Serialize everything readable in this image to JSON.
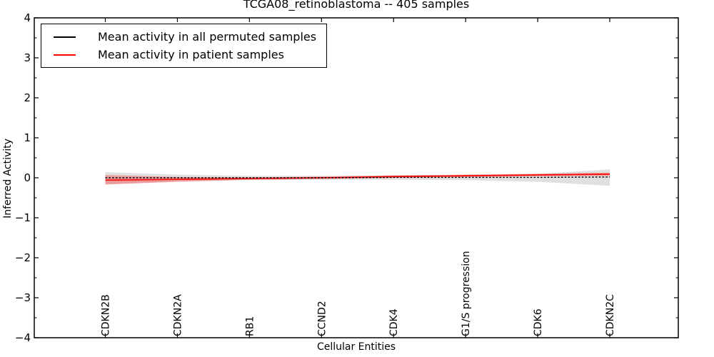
{
  "chart_data": {
    "type": "line",
    "title": "TCGA08_retinoblastoma -- 405 samples",
    "xlabel": "Cellular Entities",
    "ylabel": "Inferred Activity",
    "ylim": [
      -4,
      4
    ],
    "ytick_values": [
      4,
      3,
      2,
      1,
      0,
      -1,
      -2,
      -3,
      -4
    ],
    "ytick_labels": [
      "4",
      "3",
      "2",
      "1",
      "0",
      "−1",
      "−2",
      "−3",
      "−4"
    ],
    "minor_ytick_step": 0.5,
    "grid": false,
    "legend_position": "upper left",
    "categories": [
      "CDKN2B",
      "CDKN2A",
      "RB1",
      "CCND2",
      "CDK4",
      "G1/S progression",
      "CDK6",
      "CDKN2C"
    ],
    "series": [
      {
        "name": "Mean activity in all permuted samples",
        "color": "#000000",
        "style": "dashed",
        "values": [
          0.0,
          0.0,
          0.0,
          0.0,
          0.01,
          0.01,
          0.01,
          0.02
        ],
        "band_upper": [
          0.14,
          0.08,
          0.05,
          0.05,
          0.06,
          0.07,
          0.1,
          0.21
        ],
        "band_lower": [
          -0.16,
          -0.09,
          -0.06,
          -0.05,
          -0.05,
          -0.06,
          -0.1,
          -0.2
        ],
        "band_color": "#000000",
        "band_opacity": 0.12
      },
      {
        "name": "Mean activity in patient samples",
        "color": "#ff0000",
        "style": "solid",
        "values": [
          -0.06,
          -0.04,
          -0.02,
          0.0,
          0.03,
          0.05,
          0.07,
          0.09
        ],
        "band_upper": [
          0.07,
          0.02,
          0.01,
          0.03,
          0.06,
          0.08,
          0.1,
          0.13
        ],
        "band_lower": [
          -0.17,
          -0.1,
          -0.05,
          -0.03,
          0.0,
          0.02,
          0.04,
          0.05
        ],
        "band_color": "#ff0000",
        "band_opacity": 0.3
      }
    ]
  }
}
